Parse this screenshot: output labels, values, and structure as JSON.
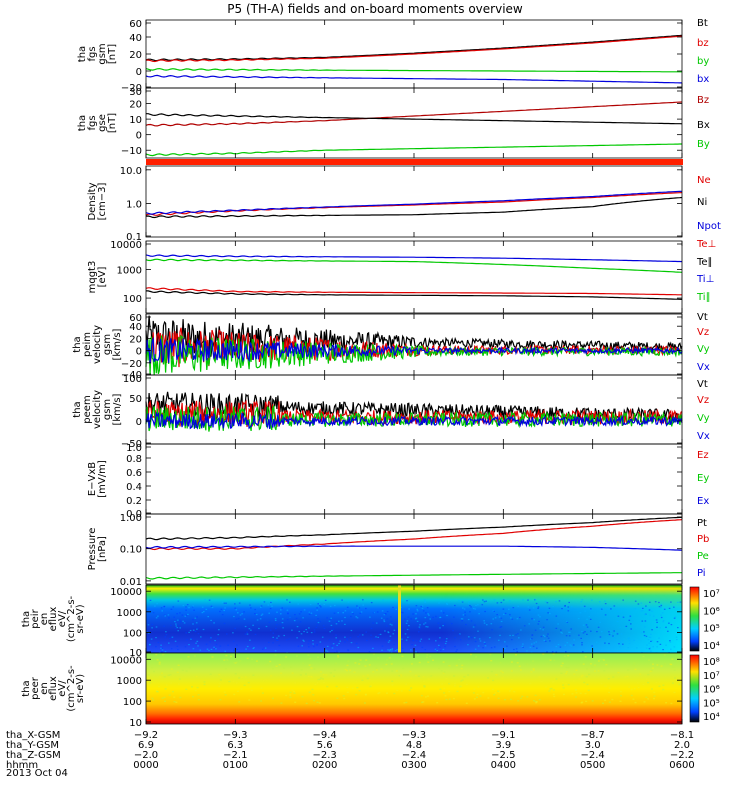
{
  "title": "P5 (TH-A) fields and on-board moments overview",
  "colors": {
    "black": "#000000",
    "red": "#e00000",
    "green": "#00c800",
    "blue": "#0000dd",
    "darkred": "#b00000",
    "orange_bar": "#ff2000"
  },
  "chart_data": [
    {
      "type": "line",
      "panel": "fgs_gsm",
      "ylabel": [
        "tha",
        "fgs",
        "gsm",
        "[nT]"
      ],
      "ylim": [
        -20,
        60
      ],
      "yticks": [
        "60",
        "40",
        "20",
        "0",
        "−20"
      ],
      "series": [
        {
          "name": "Bt",
          "color": "black",
          "x": [
            0,
            1,
            2,
            3,
            4,
            5,
            6
          ],
          "values": [
            13,
            14,
            16,
            21,
            27,
            34,
            42
          ]
        },
        {
          "name": "bz",
          "color": "red",
          "x": [
            0,
            1,
            2,
            3,
            4,
            5,
            6
          ],
          "values": [
            12,
            13,
            15,
            20,
            26,
            33,
            41
          ]
        },
        {
          "name": "by",
          "color": "green",
          "x": [
            0,
            1,
            2,
            3,
            4,
            5,
            6
          ],
          "values": [
            2,
            1.5,
            1,
            0.5,
            0,
            -0.5,
            -1
          ]
        },
        {
          "name": "bx",
          "color": "blue",
          "x": [
            0,
            1,
            2,
            3,
            4,
            5,
            6
          ],
          "values": [
            -6,
            -7,
            -8,
            -9,
            -10,
            -12,
            -14
          ]
        }
      ]
    },
    {
      "type": "line",
      "panel": "fgs_sm",
      "ylabel": [
        "tha",
        "fgs",
        "gse",
        "[nT]"
      ],
      "ylim": [
        -15,
        30
      ],
      "yticks": [
        "30",
        "20",
        "10",
        "0",
        "−10"
      ],
      "series": [
        {
          "name": "Bz",
          "color": "darkred",
          "x": [
            0,
            1,
            2,
            3,
            4,
            5,
            6
          ],
          "values": [
            6,
            7,
            9,
            12,
            15,
            18,
            21
          ]
        },
        {
          "name": "Bx",
          "color": "black",
          "x": [
            0,
            1,
            2,
            3,
            4,
            5,
            6
          ],
          "values": [
            13,
            12,
            11,
            10,
            9,
            8,
            7
          ]
        },
        {
          "name": "By",
          "color": "green",
          "x": [
            0,
            1,
            2,
            3,
            4,
            5,
            6
          ],
          "values": [
            -13,
            -12,
            -10,
            -9,
            -8,
            -7,
            -6
          ]
        }
      ]
    },
    {
      "type": "line",
      "panel": "density",
      "ylabel": [
        "Density",
        "[cm−3]"
      ],
      "scale": "log",
      "ylim": [
        0.1,
        13
      ],
      "yticks": [
        "10.0",
        "1.0",
        "0.1"
      ],
      "series": [
        {
          "name": "Ne",
          "color": "red",
          "x": [
            0,
            1,
            2,
            3,
            4,
            5,
            6
          ],
          "values": [
            0.45,
            0.6,
            0.75,
            0.9,
            1.1,
            1.5,
            2.1
          ]
        },
        {
          "name": "Ni",
          "color": "black",
          "x": [
            0,
            1,
            2,
            3,
            4,
            5,
            6
          ],
          "values": [
            0.4,
            0.42,
            0.44,
            0.46,
            0.55,
            0.8,
            1.5
          ]
        },
        {
          "name": "Npot",
          "color": "blue",
          "x": [
            0,
            1,
            2,
            3,
            4,
            5,
            6
          ],
          "values": [
            0.5,
            0.62,
            0.78,
            0.95,
            1.2,
            1.6,
            2.3
          ]
        }
      ]
    },
    {
      "type": "line",
      "panel": "temperature",
      "ylabel": [
        "mqgt3",
        "[eV]"
      ],
      "scale": "log",
      "ylim": [
        30,
        10000
      ],
      "yticks": [
        "10000",
        "1000",
        "100"
      ],
      "series": [
        {
          "name": "Te⊥",
          "color": "red",
          "x": [
            0,
            1,
            2,
            3,
            4,
            5,
            6
          ],
          "values": [
            220,
            170,
            160,
            155,
            150,
            145,
            130
          ]
        },
        {
          "name": "Te∥",
          "color": "black",
          "x": [
            0,
            1,
            2,
            3,
            4,
            5,
            6
          ],
          "values": [
            170,
            140,
            130,
            125,
            120,
            110,
            90
          ]
        },
        {
          "name": "Ti⊥",
          "color": "blue",
          "x": [
            0,
            1,
            2,
            3,
            4,
            5,
            6
          ],
          "values": [
            3100,
            2900,
            2800,
            2700,
            2500,
            2200,
            1900
          ]
        },
        {
          "name": "Ti∥",
          "color": "green",
          "x": [
            0,
            1,
            2,
            3,
            4,
            5,
            6
          ],
          "values": [
            2200,
            2100,
            2000,
            1900,
            1500,
            1100,
            800
          ]
        }
      ]
    },
    {
      "type": "line",
      "panel": "velocity_peim",
      "ylabel": [
        "tha",
        "peim",
        "velocity",
        "gsm",
        "[km/s]"
      ],
      "ylim": [
        -40,
        60
      ],
      "yticks": [
        "60",
        "40",
        "20",
        "0",
        "−20",
        "−40"
      ],
      "series": [
        {
          "name": "Vt",
          "color": "black"
        },
        {
          "name": "Vz",
          "color": "red"
        },
        {
          "name": "Vy",
          "color": "green"
        },
        {
          "name": "Vx",
          "color": "blue"
        }
      ]
    },
    {
      "type": "line",
      "panel": "velocity_peem",
      "ylabel": [
        "tha",
        "peem",
        "velocity",
        "gsm",
        "[km/s]"
      ],
      "ylim": [
        -50,
        100
      ],
      "yticks": [
        "100",
        "50",
        "0",
        "−50"
      ],
      "series": [
        {
          "name": "Vt",
          "color": "black"
        },
        {
          "name": "Vz",
          "color": "red"
        },
        {
          "name": "Vy",
          "color": "green"
        },
        {
          "name": "Vx",
          "color": "blue"
        }
      ]
    },
    {
      "type": "line",
      "panel": "efield",
      "ylabel": [
        "E−VxB",
        "[mV/m]"
      ],
      "ylim": [
        0,
        1
      ],
      "yticks": [
        "1.0",
        "0.8",
        "0.6",
        "0.4",
        "0.2",
        "0.0"
      ],
      "series": [
        {
          "name": "Ez",
          "color": "red"
        },
        {
          "name": "Ey",
          "color": "green"
        },
        {
          "name": "Ex",
          "color": "blue"
        }
      ]
    },
    {
      "type": "line",
      "panel": "pressure",
      "ylabel": [
        "Pressure",
        "[nPa]"
      ],
      "scale": "log",
      "ylim": [
        0.008,
        1.2
      ],
      "yticks": [
        "1.00",
        "0.10",
        "0.01"
      ],
      "series": [
        {
          "name": "Pt",
          "color": "black",
          "x": [
            0,
            1,
            2,
            3,
            4,
            5,
            6
          ],
          "values": [
            0.2,
            0.22,
            0.27,
            0.35,
            0.47,
            0.65,
            0.95
          ]
        },
        {
          "name": "Pb",
          "color": "red",
          "x": [
            0,
            1,
            2,
            3,
            4,
            5,
            6
          ],
          "values": [
            0.1,
            0.1,
            0.14,
            0.2,
            0.3,
            0.5,
            0.8
          ]
        },
        {
          "name": "Pe",
          "color": "green",
          "x": [
            0,
            1,
            2,
            3,
            4,
            5,
            6
          ],
          "values": [
            0.012,
            0.013,
            0.014,
            0.015,
            0.016,
            0.017,
            0.018
          ]
        },
        {
          "name": "Pi",
          "color": "blue",
          "x": [
            0,
            1,
            2,
            3,
            4,
            5,
            6
          ],
          "values": [
            0.11,
            0.115,
            0.12,
            0.12,
            0.12,
            0.11,
            0.09
          ]
        }
      ]
    },
    {
      "type": "heatmap",
      "panel": "ion_spectrogram",
      "ylabel": [
        "tha",
        "peir",
        "en",
        "eflux",
        "eV/",
        "(cm^2-s-",
        "sr-eV)"
      ],
      "scale": "log",
      "ylim": [
        10,
        20000
      ],
      "yticks": [
        "10000",
        "1000",
        "100",
        "10"
      ],
      "colorbar": [
        "10⁷",
        "10⁶",
        "10⁵",
        "10⁴"
      ]
    },
    {
      "type": "heatmap",
      "panel": "electron_spectrogram",
      "ylabel": [
        "tha",
        "peer",
        "en",
        "eflux",
        "eV/",
        "(cm^2-s-",
        "sr-eV)"
      ],
      "scale": "log",
      "ylim": [
        8,
        20000
      ],
      "yticks": [
        "10000",
        "1000",
        "100",
        "10"
      ],
      "colorbar": [
        "10⁸",
        "10⁷",
        "10⁶",
        "10⁵",
        "10⁴"
      ]
    }
  ],
  "xaxis": {
    "rows": [
      {
        "label": "tha_X-GSM",
        "values": [
          "−9.2",
          "−9.3",
          "−9.4",
          "−9.3",
          "−9.1",
          "−8.7",
          "−8.1"
        ]
      },
      {
        "label": "tha_Y-GSM",
        "values": [
          "6.9",
          "6.3",
          "5.6",
          "4.8",
          "3.9",
          "3.0",
          "2.0"
        ]
      },
      {
        "label": "tha_Z-GSM",
        "values": [
          "−2.0",
          "−2.1",
          "−2.3",
          "−2.4",
          "−2.5",
          "−2.4",
          "−2.2"
        ]
      },
      {
        "label": "hhmm",
        "values": [
          "0000",
          "0100",
          "0200",
          "0300",
          "0400",
          "0500",
          "0600"
        ]
      }
    ],
    "date": "2013 Oct 04"
  }
}
